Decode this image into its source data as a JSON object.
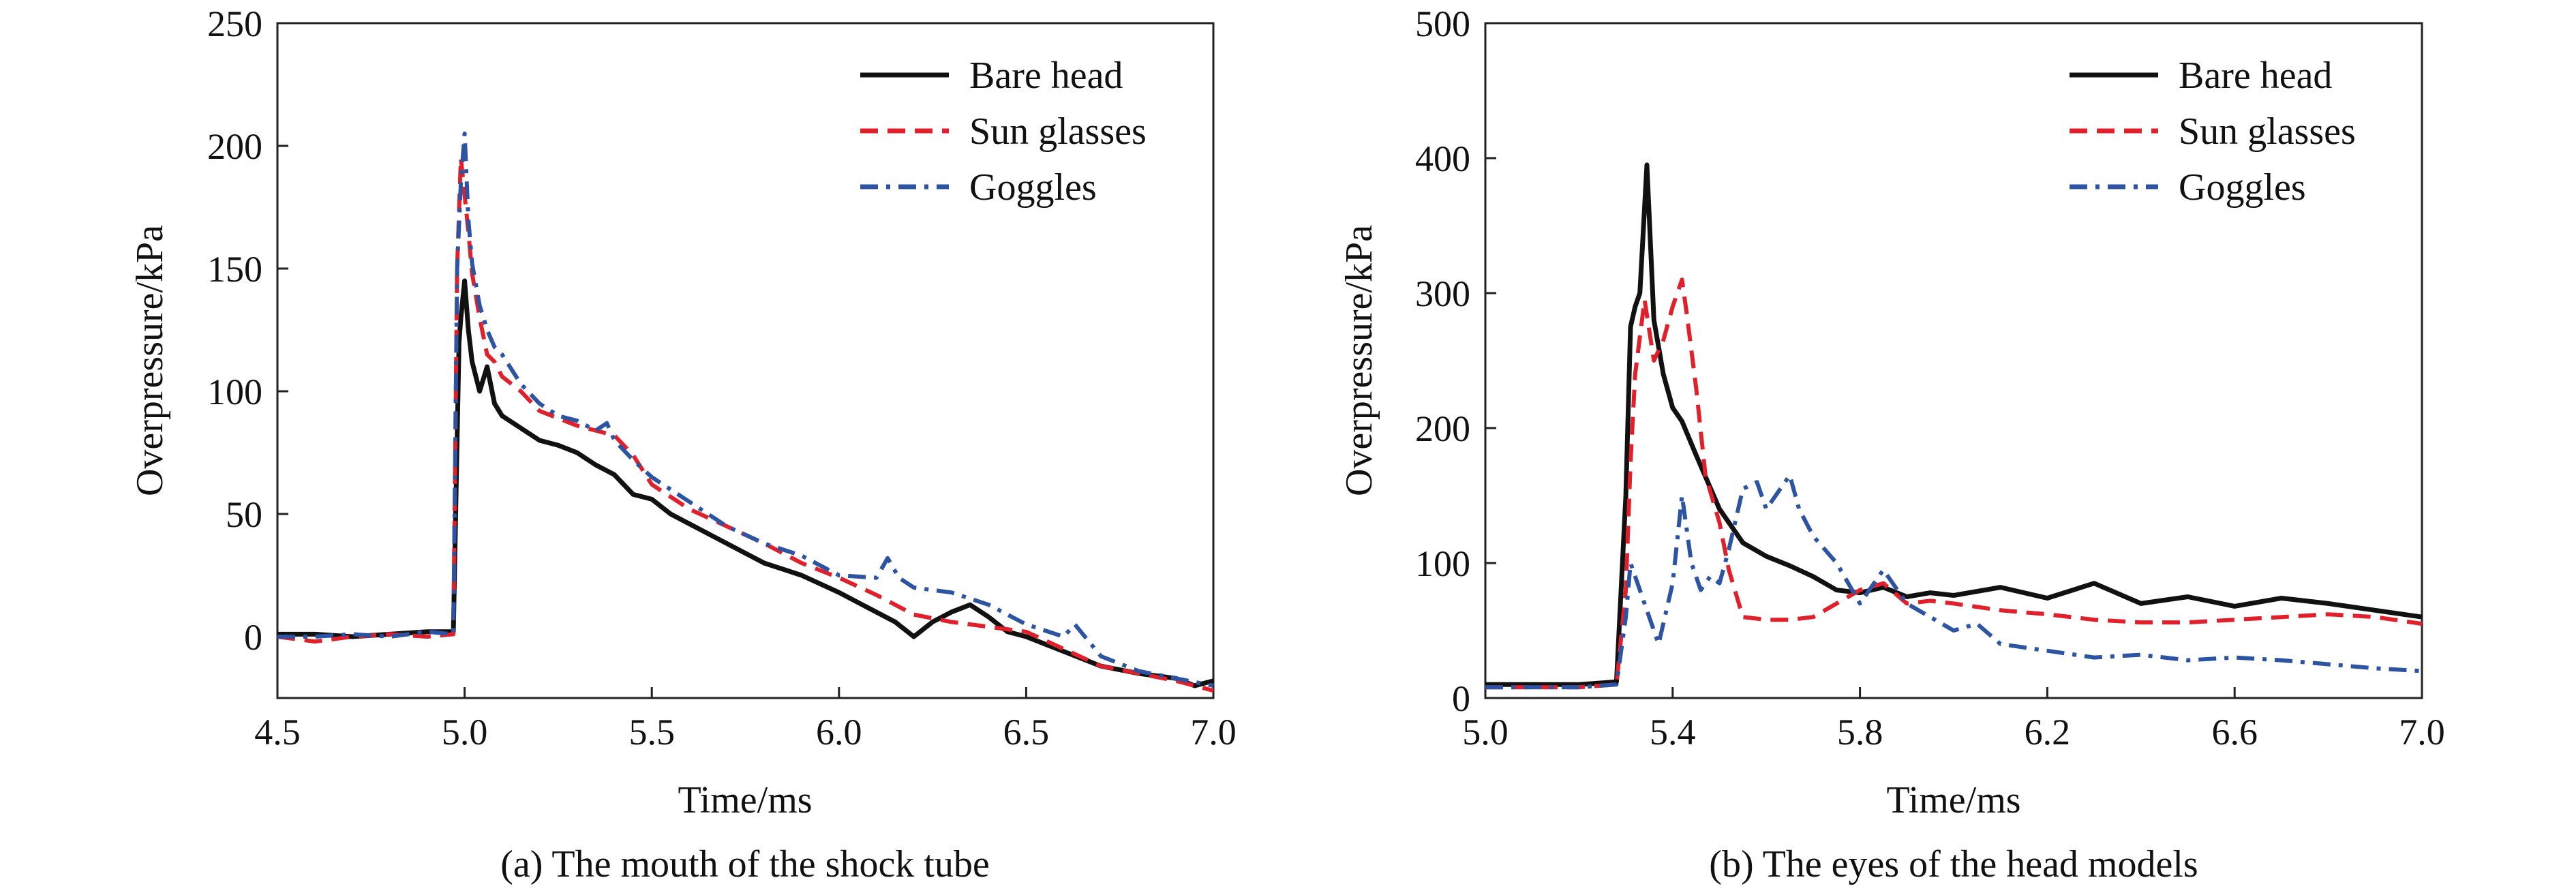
{
  "chart_data": [
    {
      "type": "line",
      "caption": "(a) The mouth of the shock tube",
      "xlabel": "Time/ms",
      "ylabel": "Overpressure/kPa",
      "xlim": [
        4.5,
        7.0
      ],
      "ylim": [
        -25,
        250
      ],
      "xticks": [
        "4.5",
        "5.0",
        "5.5",
        "6.0",
        "6.5",
        "7.0"
      ],
      "yticks": [
        "0",
        "50",
        "100",
        "150",
        "200",
        "250"
      ],
      "grid": false,
      "legend_position": "top-right",
      "series": [
        {
          "name": "Bare head",
          "color": "#111111",
          "dash": "solid",
          "x": [
            4.5,
            4.6,
            4.7,
            4.8,
            4.9,
            4.97,
            4.985,
            4.99,
            5.0,
            5.01,
            5.02,
            5.04,
            5.06,
            5.08,
            5.1,
            5.15,
            5.2,
            5.25,
            5.3,
            5.35,
            5.4,
            5.45,
            5.5,
            5.55,
            5.6,
            5.7,
            5.8,
            5.9,
            6.0,
            6.1,
            6.15,
            6.2,
            6.25,
            6.3,
            6.35,
            6.4,
            6.45,
            6.5,
            6.6,
            6.7,
            6.8,
            6.9,
            6.95,
            7.0
          ],
          "y": [
            1,
            1,
            0,
            1,
            2,
            2,
            120,
            130,
            145,
            125,
            112,
            100,
            110,
            95,
            90,
            85,
            80,
            78,
            75,
            70,
            66,
            58,
            56,
            50,
            46,
            38,
            30,
            25,
            18,
            10,
            6,
            0,
            6,
            10,
            13,
            8,
            2,
            0,
            -6,
            -12,
            -15,
            -17,
            -20,
            -18
          ]
        },
        {
          "name": "Sun glasses",
          "color": "#e0202a",
          "dash": "dashed",
          "x": [
            4.5,
            4.6,
            4.7,
            4.8,
            4.9,
            4.97,
            4.98,
            4.99,
            5.0,
            5.01,
            5.02,
            5.04,
            5.06,
            5.08,
            5.1,
            5.15,
            5.2,
            5.25,
            5.3,
            5.35,
            5.4,
            5.45,
            5.5,
            5.6,
            5.7,
            5.8,
            5.9,
            6.0,
            6.1,
            6.2,
            6.3,
            6.4,
            6.5,
            6.6,
            6.7,
            6.8,
            6.9,
            7.0
          ],
          "y": [
            0,
            -2,
            0,
            1,
            0,
            1,
            150,
            195,
            180,
            165,
            148,
            130,
            115,
            112,
            106,
            100,
            92,
            89,
            86,
            84,
            82,
            74,
            62,
            52,
            45,
            38,
            30,
            24,
            17,
            9,
            6,
            4,
            2,
            -5,
            -12,
            -15,
            -18,
            -22
          ]
        },
        {
          "name": "Goggles",
          "color": "#2d54a3",
          "dash": "dashdot",
          "x": [
            4.5,
            4.6,
            4.7,
            4.8,
            4.9,
            4.97,
            4.98,
            4.99,
            5.0,
            5.01,
            5.02,
            5.04,
            5.06,
            5.08,
            5.1,
            5.15,
            5.2,
            5.25,
            5.3,
            5.35,
            5.38,
            5.4,
            5.45,
            5.5,
            5.6,
            5.7,
            5.8,
            5.9,
            6.0,
            6.1,
            6.13,
            6.16,
            6.2,
            6.3,
            6.4,
            6.5,
            6.6,
            6.63,
            6.7,
            6.8,
            6.9,
            7.0
          ],
          "y": [
            0,
            0,
            1,
            0,
            2,
            1,
            150,
            185,
            205,
            170,
            152,
            135,
            125,
            118,
            115,
            103,
            95,
            90,
            88,
            84,
            87,
            80,
            72,
            65,
            55,
            45,
            38,
            33,
            25,
            24,
            32,
            24,
            20,
            18,
            13,
            5,
            0,
            5,
            -8,
            -14,
            -17,
            -20
          ]
        }
      ]
    },
    {
      "type": "line",
      "caption": "(b) The eyes of the head models",
      "xlabel": "Time/ms",
      "ylabel": "Overpressure/kPa",
      "xlim": [
        5.0,
        7.0
      ],
      "ylim": [
        0,
        500
      ],
      "xticks": [
        "5.0",
        "5.4",
        "5.8",
        "6.2",
        "6.6",
        "7.0"
      ],
      "yticks": [
        "0",
        "100",
        "200",
        "300",
        "400",
        "500"
      ],
      "grid": false,
      "legend_position": "top-right",
      "series": [
        {
          "name": "Bare head",
          "color": "#111111",
          "dash": "solid",
          "x": [
            5.0,
            5.1,
            5.2,
            5.28,
            5.3,
            5.31,
            5.32,
            5.33,
            5.345,
            5.36,
            5.38,
            5.4,
            5.42,
            5.45,
            5.5,
            5.55,
            5.6,
            5.65,
            5.7,
            5.75,
            5.8,
            5.85,
            5.9,
            5.95,
            6.0,
            6.1,
            6.2,
            6.3,
            6.4,
            6.5,
            6.6,
            6.7,
            6.8,
            6.9,
            7.0
          ],
          "y": [
            10,
            10,
            10,
            12,
            150,
            275,
            290,
            300,
            395,
            280,
            240,
            215,
            205,
            180,
            140,
            115,
            105,
            98,
            90,
            80,
            78,
            82,
            75,
            78,
            76,
            82,
            74,
            85,
            70,
            75,
            68,
            74,
            70,
            65,
            60
          ]
        },
        {
          "name": "Sun glasses",
          "color": "#e0202a",
          "dash": "dashed",
          "x": [
            5.0,
            5.1,
            5.2,
            5.28,
            5.3,
            5.31,
            5.32,
            5.34,
            5.36,
            5.38,
            5.4,
            5.42,
            5.43,
            5.45,
            5.47,
            5.5,
            5.52,
            5.55,
            5.6,
            5.65,
            5.7,
            5.75,
            5.8,
            5.85,
            5.9,
            5.95,
            6.0,
            6.1,
            6.2,
            6.3,
            6.4,
            6.5,
            6.6,
            6.7,
            6.8,
            6.9,
            7.0
          ],
          "y": [
            8,
            8,
            8,
            10,
            80,
            175,
            240,
            295,
            250,
            265,
            290,
            310,
            285,
            230,
            165,
            130,
            95,
            60,
            58,
            58,
            60,
            70,
            80,
            85,
            70,
            72,
            70,
            65,
            62,
            58,
            56,
            56,
            58,
            60,
            62,
            60,
            55
          ]
        },
        {
          "name": "Goggles",
          "color": "#2d54a3",
          "dash": "dashdot",
          "x": [
            5.0,
            5.1,
            5.2,
            5.28,
            5.3,
            5.31,
            5.33,
            5.35,
            5.37,
            5.4,
            5.42,
            5.44,
            5.46,
            5.48,
            5.5,
            5.52,
            5.55,
            5.58,
            5.6,
            5.63,
            5.65,
            5.67,
            5.7,
            5.75,
            5.8,
            5.85,
            5.9,
            5.95,
            6.0,
            6.05,
            6.1,
            6.2,
            6.3,
            6.4,
            6.5,
            6.6,
            6.7,
            6.8,
            6.9,
            7.0
          ],
          "y": [
            8,
            8,
            8,
            10,
            60,
            100,
            80,
            60,
            40,
            85,
            150,
            100,
            80,
            90,
            85,
            110,
            155,
            160,
            140,
            155,
            165,
            140,
            120,
            100,
            70,
            95,
            70,
            60,
            50,
            55,
            40,
            35,
            30,
            32,
            28,
            30,
            28,
            25,
            22,
            20
          ]
        }
      ]
    }
  ]
}
